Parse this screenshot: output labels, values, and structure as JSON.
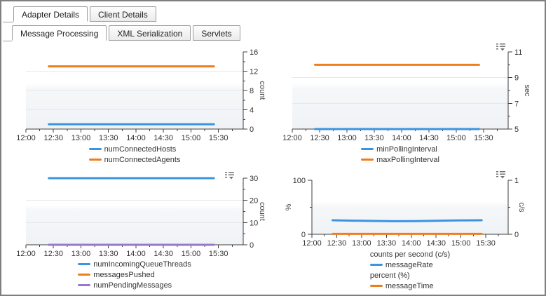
{
  "tabs": {
    "primary": [
      {
        "label": "Adapter Details"
      },
      {
        "label": "Client Details"
      }
    ],
    "secondary": [
      {
        "label": "Message Processing"
      },
      {
        "label": "XML Serialization"
      },
      {
        "label": "Servlets"
      }
    ]
  },
  "colors": {
    "blue": "#3b94df",
    "orange": "#ee7d1e",
    "purple": "#9878c8",
    "axis": "#3f3f3f",
    "grid": "#e5e8ec",
    "plot_fill_bottom": "#f0f3f6"
  },
  "chart_data": [
    {
      "type": "line",
      "x_axis": {
        "range": [
          0,
          237
        ],
        "major_minutes": [
          0,
          30,
          60,
          90,
          120,
          150,
          180,
          210
        ],
        "tick_labels": [
          "12:00",
          "12:30",
          "13:00",
          "13:30",
          "14:00",
          "14:30",
          "15:00",
          "15:30"
        ],
        "minor_step": 15
      },
      "axes": [
        {
          "side": "right",
          "label": "count",
          "range": [
            0,
            16
          ],
          "majors": [
            0,
            4,
            8,
            12,
            16
          ],
          "minors": [
            2,
            6,
            10,
            14
          ]
        }
      ],
      "series": [
        {
          "name": "numConnectedHosts",
          "color": "blue",
          "axis": 0,
          "points": [
            [
              25,
              1
            ],
            [
              205,
              1
            ]
          ]
        },
        {
          "name": "numConnectedAgents",
          "color": "orange",
          "axis": 0,
          "points": [
            [
              25,
              13
            ],
            [
              205,
              13
            ]
          ]
        }
      ],
      "legend": [
        {
          "swatch": "blue",
          "label": "numConnectedHosts"
        },
        {
          "swatch": "orange",
          "label": "numConnectedAgents"
        }
      ],
      "menu_icon": false
    },
    {
      "type": "line",
      "x_axis": {
        "range": [
          0,
          237
        ],
        "major_minutes": [
          0,
          30,
          60,
          90,
          120,
          150,
          180,
          210
        ],
        "tick_labels": [
          "12:00",
          "12:30",
          "13:00",
          "13:30",
          "14:00",
          "14:30",
          "15:00",
          "15:30"
        ],
        "minor_step": 15
      },
      "axes": [
        {
          "side": "right",
          "label": "sec",
          "range": [
            5,
            11
          ],
          "majors": [
            5,
            7,
            9,
            11
          ],
          "minors": [
            6,
            8,
            10
          ]
        }
      ],
      "series": [
        {
          "name": "minPollingInterval",
          "color": "blue",
          "axis": 0,
          "points": [
            [
              25,
              5
            ],
            [
              205,
              5
            ]
          ]
        },
        {
          "name": "maxPollingInterval",
          "color": "orange",
          "axis": 0,
          "points": [
            [
              25,
              10
            ],
            [
              205,
              10
            ]
          ]
        }
      ],
      "legend": [
        {
          "swatch": "blue",
          "label": "minPollingInterval"
        },
        {
          "swatch": "orange",
          "label": "maxPollingInterval"
        }
      ],
      "menu_icon": true
    },
    {
      "type": "line",
      "x_axis": {
        "range": [
          0,
          237
        ],
        "major_minutes": [
          0,
          30,
          60,
          90,
          120,
          150,
          180,
          210
        ],
        "tick_labels": [
          "12:00",
          "12:30",
          "13:00",
          "13:30",
          "14:00",
          "14:30",
          "15:00",
          "15:30"
        ],
        "minor_step": 15
      },
      "axes": [
        {
          "side": "right",
          "label": "count",
          "range": [
            0,
            30
          ],
          "majors": [
            0,
            10,
            20,
            30
          ],
          "minors": [
            5,
            15,
            25
          ]
        }
      ],
      "series": [
        {
          "name": "numIncomingQueueThreads",
          "color": "blue",
          "axis": 0,
          "points": [
            [
              25,
              30
            ],
            [
              205,
              30
            ]
          ]
        },
        {
          "name": "messagesPushed",
          "color": "orange",
          "axis": 0,
          "points": [
            [
              25,
              0
            ],
            [
              205,
              0
            ]
          ]
        },
        {
          "name": "numPendingMessages",
          "color": "purple",
          "axis": 0,
          "points": [
            [
              25,
              0
            ],
            [
              205,
              0
            ]
          ]
        }
      ],
      "legend": [
        {
          "swatch": "blue",
          "label": "numIncomingQueueThreads"
        },
        {
          "swatch": "orange",
          "label": "messagesPushed"
        },
        {
          "swatch": "purple",
          "label": "numPendingMessages"
        }
      ],
      "menu_icon": true
    },
    {
      "type": "line",
      "x_axis": {
        "range": [
          0,
          237
        ],
        "major_minutes": [
          0,
          30,
          60,
          90,
          120,
          150,
          180,
          210
        ],
        "tick_labels": [
          "12:00",
          "12:30",
          "13:00",
          "13:30",
          "14:00",
          "14:30",
          "15:00",
          "15:30"
        ],
        "minor_step": 15
      },
      "axes": [
        {
          "side": "left",
          "label": "%",
          "range": [
            0,
            100
          ],
          "majors": [
            0,
            100
          ],
          "minors": [
            50
          ]
        },
        {
          "side": "right",
          "label": "c/s",
          "range": [
            0,
            1
          ],
          "majors": [
            0,
            1
          ],
          "minors": [
            0.5
          ]
        }
      ],
      "series": [
        {
          "name": "messageTime",
          "color": "orange",
          "axis": 0,
          "points": [
            [
              25,
              0.8
            ],
            [
              205,
              0.8
            ]
          ]
        },
        {
          "name": "messageRate",
          "color": "blue",
          "axis": 1,
          "points": [
            [
              25,
              0.26
            ],
            [
              50,
              0.252
            ],
            [
              75,
              0.246
            ],
            [
              100,
              0.242
            ],
            [
              125,
              0.244
            ],
            [
              150,
              0.25
            ],
            [
              175,
              0.256
            ],
            [
              205,
              0.26
            ]
          ]
        }
      ],
      "legend": [
        {
          "header": "counts per second (c/s)"
        },
        {
          "swatch": "blue",
          "label": "messageRate"
        },
        {
          "header": "percent (%)"
        },
        {
          "swatch": "orange",
          "label": "messageTime"
        }
      ],
      "menu_icon": true
    }
  ]
}
